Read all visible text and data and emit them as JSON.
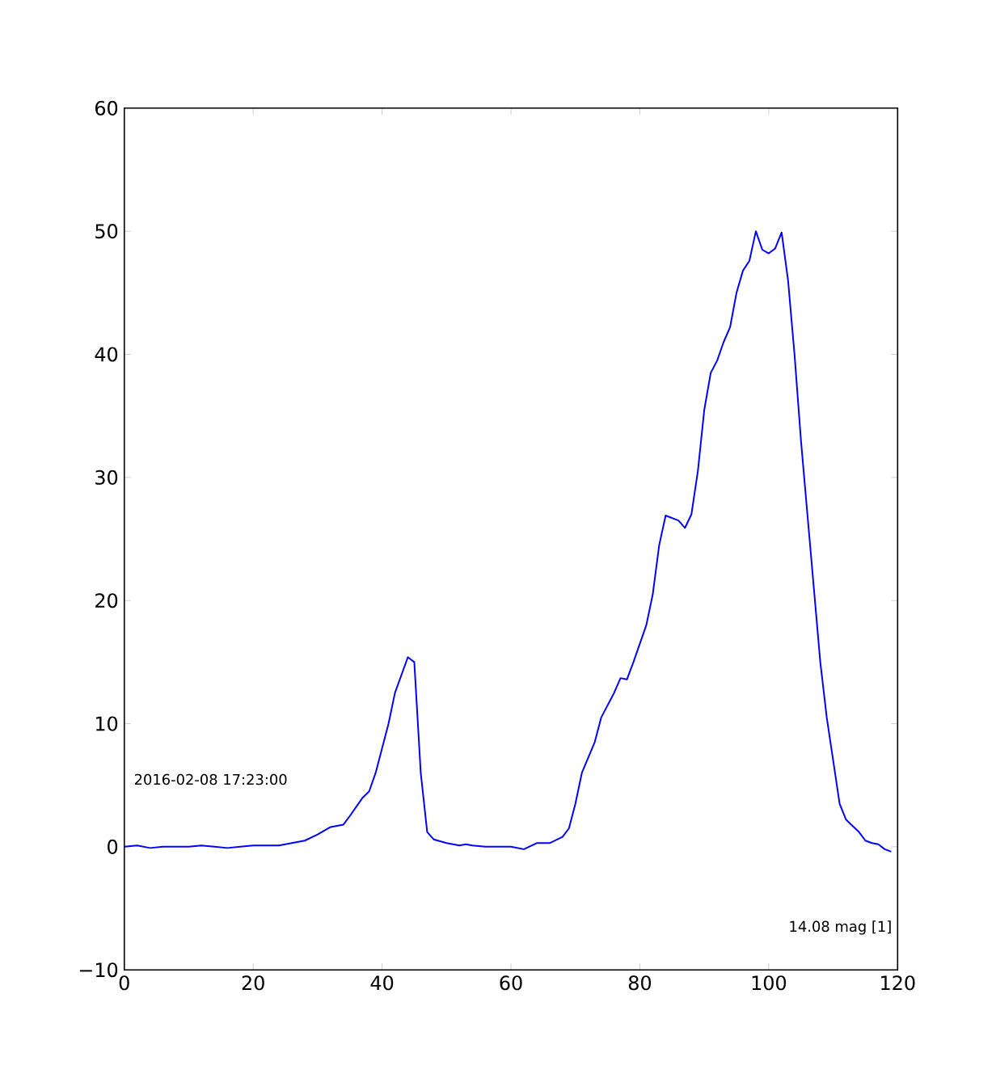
{
  "chart_data": {
    "type": "line",
    "x": [
      0,
      2,
      4,
      6,
      8,
      10,
      12,
      14,
      16,
      18,
      20,
      22,
      24,
      26,
      28,
      30,
      32,
      34,
      35,
      37,
      38,
      39,
      41,
      42,
      44,
      45,
      46,
      47,
      48,
      50,
      52,
      53,
      54,
      56,
      58,
      60,
      62,
      64,
      66,
      68,
      69,
      70,
      71,
      73,
      74,
      76,
      77,
      78,
      79,
      81,
      82,
      83,
      84,
      86,
      87,
      88,
      89,
      90,
      91,
      92,
      93,
      94,
      95,
      96,
      97,
      98,
      99,
      100,
      101,
      102,
      103,
      104,
      105,
      106,
      107,
      108,
      109,
      110,
      111,
      112,
      113,
      114,
      115,
      116,
      117,
      118,
      119
    ],
    "series": [
      {
        "color": "#0000ff",
        "values": [
          0,
          0.1,
          -0.1,
          0,
          0,
          0,
          0.1,
          0,
          -0.1,
          0,
          0.1,
          0.1,
          0.1,
          0.3,
          0.5,
          1,
          1.6,
          1.8,
          2.5,
          4,
          4.5,
          6,
          10,
          12.5,
          15.4,
          15,
          6,
          1.2,
          0.6,
          0.3,
          0.1,
          0.2,
          0.1,
          0,
          0,
          0,
          -0.2,
          0.3,
          0.3,
          0.8,
          1.5,
          3.5,
          6,
          8.5,
          10.5,
          12.5,
          13.7,
          13.6,
          15,
          18,
          20.5,
          24.5,
          26.9,
          26.5,
          25.9,
          27,
          30.5,
          35.5,
          38.5,
          39.5,
          41,
          42.2,
          45,
          46.8,
          47.6,
          50,
          48.5,
          48.2,
          48.6,
          49.9,
          46,
          40,
          33,
          27,
          21,
          15,
          10.5,
          7,
          3.5,
          2.2,
          1.7,
          1.2,
          0.5,
          0.3,
          0.2,
          -0.2,
          -0.4
        ]
      }
    ],
    "xlim": [
      0,
      120
    ],
    "ylim": [
      -10,
      60
    ],
    "xticks": [
      0,
      20,
      40,
      60,
      80,
      100,
      120
    ],
    "yticks": [
      {
        "value": -10,
        "label": "−10"
      },
      0,
      10,
      20,
      30,
      40,
      50,
      60
    ],
    "annotations": [
      "2016-02-08 17:23:00",
      "14.08 mag [1]"
    ],
    "marker": "none",
    "line_style": "solid"
  }
}
